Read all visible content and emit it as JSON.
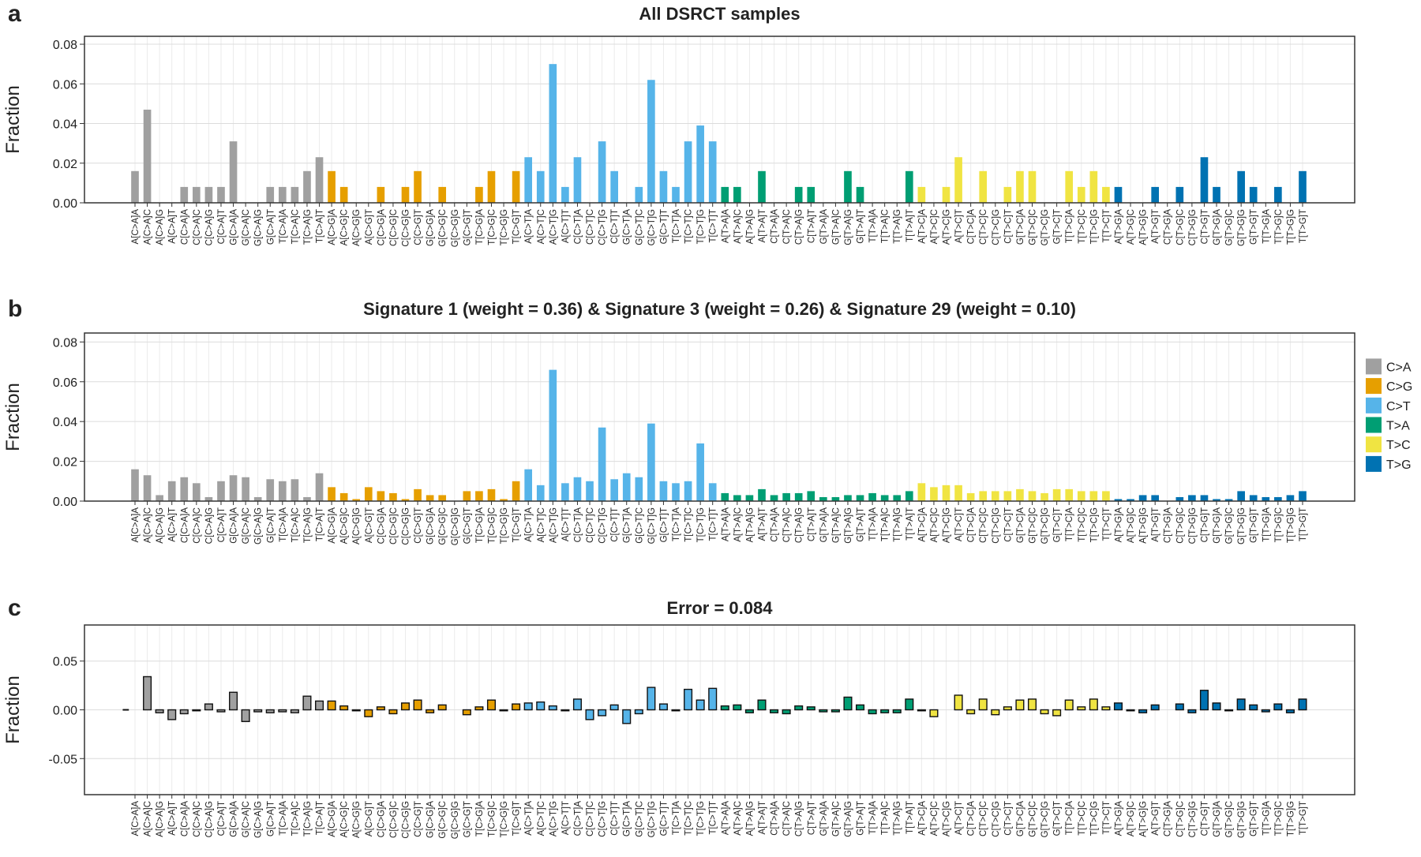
{
  "chart_data": [
    {
      "type": "bar",
      "panel": "a",
      "title": "All DSRCT samples",
      "ylabel": "Fraction",
      "ylim": [
        0,
        0.084
      ],
      "yticks": [
        {
          "value": 0,
          "label": "0.00"
        },
        {
          "value": 0.02,
          "label": "0.02"
        },
        {
          "value": 0.04,
          "label": "0.04"
        },
        {
          "value": 0.06,
          "label": "0.06"
        },
        {
          "value": 0.08,
          "label": "0.08"
        }
      ],
      "grid": true,
      "bar_edge": false,
      "series": [
        {
          "color": "#a0a0a0",
          "categories": [
            "A[C>A]A",
            "A[C>A]C",
            "A[C>A]G",
            "A[C>A]T",
            "C[C>A]A",
            "C[C>A]C",
            "C[C>A]G",
            "C[C>A]T",
            "G[C>A]A",
            "G[C>A]C",
            "G[C>A]G",
            "G[C>A]T",
            "T[C>A]A",
            "T[C>A]C",
            "T[C>A]G",
            "T[C>A]T"
          ],
          "values": [
            0.016,
            0.047,
            0,
            0,
            0.008,
            0.008,
            0.008,
            0.008,
            0.031,
            0,
            0,
            0.008,
            0.008,
            0.008,
            0.016,
            0.023
          ]
        },
        {
          "color": "#e69f00",
          "categories": [
            "A[C>G]A",
            "A[C>G]C",
            "A[C>G]G",
            "A[C>G]T",
            "C[C>G]A",
            "C[C>G]C",
            "C[C>G]G",
            "C[C>G]T",
            "G[C>G]A",
            "G[C>G]C",
            "G[C>G]G",
            "G[C>G]T",
            "T[C>G]A",
            "T[C>G]C",
            "T[C>G]G",
            "T[C>G]T"
          ],
          "values": [
            0.016,
            0.008,
            0,
            0,
            0.008,
            0,
            0.008,
            0.016,
            0,
            0.008,
            0,
            0,
            0.008,
            0.016,
            0,
            0.016
          ]
        },
        {
          "color": "#56b4e9",
          "categories": [
            "A[C>T]A",
            "A[C>T]C",
            "A[C>T]G",
            "A[C>T]T",
            "C[C>T]A",
            "C[C>T]C",
            "C[C>T]G",
            "C[C>T]T",
            "G[C>T]A",
            "G[C>T]C",
            "G[C>T]G",
            "G[C>T]T",
            "T[C>T]A",
            "T[C>T]C",
            "T[C>T]G",
            "T[C>T]T"
          ],
          "values": [
            0.023,
            0.016,
            0.07,
            0.008,
            0.023,
            0,
            0.031,
            0.016,
            0,
            0.008,
            0.062,
            0.016,
            0.008,
            0.031,
            0.039,
            0.031
          ]
        },
        {
          "color": "#009e73",
          "categories": [
            "A[T>A]A",
            "A[T>A]C",
            "A[T>A]G",
            "A[T>A]T",
            "C[T>A]A",
            "C[T>A]C",
            "C[T>A]G",
            "C[T>A]T",
            "G[T>A]A",
            "G[T>A]C",
            "G[T>A]G",
            "G[T>A]T",
            "T[T>A]A",
            "T[T>A]C",
            "T[T>A]G",
            "T[T>A]T"
          ],
          "values": [
            0.008,
            0.008,
            0,
            0.016,
            0,
            0,
            0.008,
            0.008,
            0,
            0,
            0.016,
            0.008,
            0,
            0,
            0,
            0.016
          ]
        },
        {
          "color": "#f0e442",
          "categories": [
            "A[T>C]A",
            "A[T>C]C",
            "A[T>C]G",
            "A[T>C]T",
            "C[T>C]A",
            "C[T>C]C",
            "C[T>C]G",
            "C[T>C]T",
            "G[T>C]A",
            "G[T>C]C",
            "G[T>C]G",
            "G[T>C]T",
            "T[T>C]A",
            "T[T>C]C",
            "T[T>C]G",
            "T[T>C]T"
          ],
          "values": [
            0.008,
            0,
            0.008,
            0.023,
            0,
            0.016,
            0,
            0.008,
            0.016,
            0.016,
            0,
            0,
            0.016,
            0.008,
            0.016,
            0.008
          ]
        },
        {
          "color": "#0072b2",
          "categories": [
            "A[T>G]A",
            "A[T>G]C",
            "A[T>G]G",
            "A[T>G]T",
            "C[T>G]A",
            "C[T>G]C",
            "C[T>G]G",
            "C[T>G]T",
            "G[T>G]A",
            "G[T>G]C",
            "G[T>G]G",
            "G[T>G]T",
            "T[T>G]A",
            "T[T>G]C",
            "T[T>G]G",
            "T[T>G]T"
          ],
          "values": [
            0.008,
            0,
            0,
            0.008,
            0,
            0.008,
            0,
            0.023,
            0.008,
            0,
            0.016,
            0.008,
            0,
            0.008,
            0,
            0.016
          ]
        }
      ]
    },
    {
      "type": "bar",
      "panel": "b",
      "title": "Signature 1 (weight = 0.36) & Signature 3 (weight = 0.26) & Signature 29 (weight = 0.10)",
      "ylabel": "Fraction",
      "ylim": [
        0,
        0.0845
      ],
      "yticks": [
        {
          "value": 0,
          "label": "0.00"
        },
        {
          "value": 0.02,
          "label": "0.02"
        },
        {
          "value": 0.04,
          "label": "0.04"
        },
        {
          "value": 0.06,
          "label": "0.06"
        },
        {
          "value": 0.08,
          "label": "0.08"
        }
      ],
      "grid": true,
      "bar_edge": false,
      "legend_position": "right",
      "series": [
        {
          "name": "C>A",
          "color": "#a0a0a0",
          "categories": [
            "A[C>A]A",
            "A[C>A]C",
            "A[C>A]G",
            "A[C>A]T",
            "C[C>A]A",
            "C[C>A]C",
            "C[C>A]G",
            "C[C>A]T",
            "G[C>A]A",
            "G[C>A]C",
            "G[C>A]G",
            "G[C>A]T",
            "T[C>A]A",
            "T[C>A]C",
            "T[C>A]G",
            "T[C>A]T"
          ],
          "values": [
            0.016,
            0.013,
            0.003,
            0.01,
            0.012,
            0.009,
            0.002,
            0.01,
            0.013,
            0.012,
            0.002,
            0.011,
            0.01,
            0.011,
            0.002,
            0.014
          ]
        },
        {
          "name": "C>G",
          "color": "#e69f00",
          "categories": [
            "A[C>G]A",
            "A[C>G]C",
            "A[C>G]G",
            "A[C>G]T",
            "C[C>G]A",
            "C[C>G]C",
            "C[C>G]G",
            "C[C>G]T",
            "G[C>G]A",
            "G[C>G]C",
            "G[C>G]G",
            "G[C>G]T",
            "T[C>G]A",
            "T[C>G]C",
            "T[C>G]G",
            "T[C>G]T"
          ],
          "values": [
            0.007,
            0.004,
            0.001,
            0.007,
            0.005,
            0.004,
            0.001,
            0.006,
            0.003,
            0.003,
            0,
            0.005,
            0.005,
            0.006,
            0.001,
            0.01
          ]
        },
        {
          "name": "C>T",
          "color": "#56b4e9",
          "categories": [
            "A[C>T]A",
            "A[C>T]C",
            "A[C>T]G",
            "A[C>T]T",
            "C[C>T]A",
            "C[C>T]C",
            "C[C>T]G",
            "C[C>T]T",
            "G[C>T]A",
            "G[C>T]C",
            "G[C>T]G",
            "G[C>T]T",
            "T[C>T]A",
            "T[C>T]C",
            "T[C>T]G",
            "T[C>T]T"
          ],
          "values": [
            0.016,
            0.008,
            0.066,
            0.009,
            0.012,
            0.01,
            0.037,
            0.011,
            0.014,
            0.012,
            0.039,
            0.01,
            0.009,
            0.01,
            0.029,
            0.009
          ]
        },
        {
          "name": "T>A",
          "color": "#009e73",
          "categories": [
            "A[T>A]A",
            "A[T>A]C",
            "A[T>A]G",
            "A[T>A]T",
            "C[T>A]A",
            "C[T>A]C",
            "C[T>A]G",
            "C[T>A]T",
            "G[T>A]A",
            "G[T>A]C",
            "G[T>A]G",
            "G[T>A]T",
            "T[T>A]A",
            "T[T>A]C",
            "T[T>A]G",
            "T[T>A]T"
          ],
          "values": [
            0.004,
            0.003,
            0.003,
            0.006,
            0.003,
            0.004,
            0.004,
            0.005,
            0.002,
            0.002,
            0.003,
            0.003,
            0.004,
            0.003,
            0.003,
            0.005
          ]
        },
        {
          "name": "T>C",
          "color": "#f0e442",
          "categories": [
            "A[T>C]A",
            "A[T>C]C",
            "A[T>C]G",
            "A[T>C]T",
            "C[T>C]A",
            "C[T>C]C",
            "C[T>C]G",
            "C[T>C]T",
            "G[T>C]A",
            "G[T>C]C",
            "G[T>C]G",
            "G[T>C]T",
            "T[T>C]A",
            "T[T>C]C",
            "T[T>C]G",
            "T[T>C]T"
          ],
          "values": [
            0.009,
            0.007,
            0.008,
            0.008,
            0.004,
            0.005,
            0.005,
            0.005,
            0.006,
            0.005,
            0.004,
            0.006,
            0.006,
            0.005,
            0.005,
            0.005
          ]
        },
        {
          "name": "T>G",
          "color": "#0072b2",
          "categories": [
            "A[T>G]A",
            "A[T>G]C",
            "A[T>G]G",
            "A[T>G]T",
            "C[T>G]A",
            "C[T>G]C",
            "C[T>G]G",
            "C[T>G]T",
            "G[T>G]A",
            "G[T>G]C",
            "G[T>G]G",
            "G[T>G]T",
            "T[T>G]A",
            "T[T>G]C",
            "T[T>G]G",
            "T[T>G]T"
          ],
          "values": [
            0.001,
            0.001,
            0.003,
            0.003,
            0,
            0.002,
            0.003,
            0.003,
            0.001,
            0.001,
            0.005,
            0.003,
            0.002,
            0.002,
            0.003,
            0.005
          ]
        }
      ]
    },
    {
      "type": "bar",
      "panel": "c",
      "title": "Error = 0.084",
      "ylabel": "Fraction",
      "ylim": [
        -0.087,
        0.087
      ],
      "yticks": [
        {
          "value": -0.05,
          "label": "-0.05"
        },
        {
          "value": 0,
          "label": "0.00"
        },
        {
          "value": 0.05,
          "label": "0.05"
        }
      ],
      "grid": true,
      "bar_edge": true,
      "series": [
        {
          "color": "#a0a0a0",
          "categories": [
            "A[C>A]A",
            "A[C>A]C",
            "A[C>A]G",
            "A[C>A]T",
            "C[C>A]A",
            "C[C>A]C",
            "C[C>A]G",
            "C[C>A]T",
            "G[C>A]A",
            "G[C>A]C",
            "G[C>A]G",
            "G[C>A]T",
            "T[C>A]A",
            "T[C>A]C",
            "T[C>A]G",
            "T[C>A]T"
          ],
          "values": [
            0,
            0.034,
            -0.003,
            -0.01,
            -0.004,
            -0.001,
            0.006,
            -0.002,
            0.018,
            -0.012,
            -0.002,
            -0.003,
            -0.002,
            -0.003,
            0.014,
            0.009
          ]
        },
        {
          "color": "#e69f00",
          "categories": [
            "A[C>G]A",
            "A[C>G]C",
            "A[C>G]G",
            "A[C>G]T",
            "C[C>G]A",
            "C[C>G]C",
            "C[C>G]G",
            "C[C>G]T",
            "G[C>G]A",
            "G[C>G]C",
            "G[C>G]G",
            "G[C>G]T",
            "T[C>G]A",
            "T[C>G]C",
            "T[C>G]G",
            "T[C>G]T"
          ],
          "values": [
            0.009,
            0.004,
            -0.001,
            -0.007,
            0.003,
            -0.004,
            0.007,
            0.01,
            -0.003,
            0.005,
            0,
            -0.005,
            0.003,
            0.01,
            -0.001,
            0.006
          ]
        },
        {
          "color": "#56b4e9",
          "categories": [
            "A[C>T]A",
            "A[C>T]C",
            "A[C>T]G",
            "A[C>T]T",
            "C[C>T]A",
            "C[C>T]C",
            "C[C>T]G",
            "C[C>T]T",
            "G[C>T]A",
            "G[C>T]C",
            "G[C>T]G",
            "G[C>T]T",
            "T[C>T]A",
            "T[C>T]C",
            "T[C>T]G",
            "T[C>T]T"
          ],
          "values": [
            0.007,
            0.008,
            0.004,
            -0.001,
            0.011,
            -0.01,
            -0.006,
            0.005,
            -0.014,
            -0.004,
            0.023,
            0.006,
            -0.001,
            0.021,
            0.01,
            0.022
          ]
        },
        {
          "color": "#009e73",
          "categories": [
            "A[T>A]A",
            "A[T>A]C",
            "A[T>A]G",
            "A[T>A]T",
            "C[T>A]A",
            "C[T>A]C",
            "C[T>A]G",
            "C[T>A]T",
            "G[T>A]A",
            "G[T>A]C",
            "G[T>A]G",
            "G[T>A]T",
            "T[T>A]A",
            "T[T>A]C",
            "T[T>A]G",
            "T[T>A]T"
          ],
          "values": [
            0.004,
            0.005,
            -0.003,
            0.01,
            -0.003,
            -0.004,
            0.004,
            0.003,
            -0.002,
            -0.002,
            0.013,
            0.005,
            -0.004,
            -0.003,
            -0.003,
            0.011
          ]
        },
        {
          "color": "#f0e442",
          "categories": [
            "A[T>C]A",
            "A[T>C]C",
            "A[T>C]G",
            "A[T>C]T",
            "C[T>C]A",
            "C[T>C]C",
            "C[T>C]G",
            "C[T>C]T",
            "G[T>C]A",
            "G[T>C]C",
            "G[T>C]G",
            "G[T>C]T",
            "T[T>C]A",
            "T[T>C]C",
            "T[T>C]G",
            "T[T>C]T"
          ],
          "values": [
            -0.001,
            -0.007,
            0,
            0.015,
            -0.004,
            0.011,
            -0.005,
            0.003,
            0.01,
            0.011,
            -0.004,
            -0.006,
            0.01,
            0.003,
            0.011,
            0.003
          ]
        },
        {
          "color": "#0072b2",
          "categories": [
            "A[T>G]A",
            "A[T>G]C",
            "A[T>G]G",
            "A[T>G]T",
            "C[T>G]A",
            "C[T>G]C",
            "C[T>G]G",
            "C[T>G]T",
            "G[T>G]A",
            "G[T>G]C",
            "G[T>G]G",
            "G[T>G]T",
            "T[T>G]A",
            "T[T>G]C",
            "T[T>G]G",
            "T[T>G]T"
          ],
          "values": [
            0.007,
            -0.001,
            -0.003,
            0.005,
            0,
            0.006,
            -0.003,
            0.02,
            0.007,
            -0.001,
            0.011,
            0.005,
            -0.002,
            0.006,
            -0.003,
            0.011
          ]
        }
      ]
    }
  ]
}
